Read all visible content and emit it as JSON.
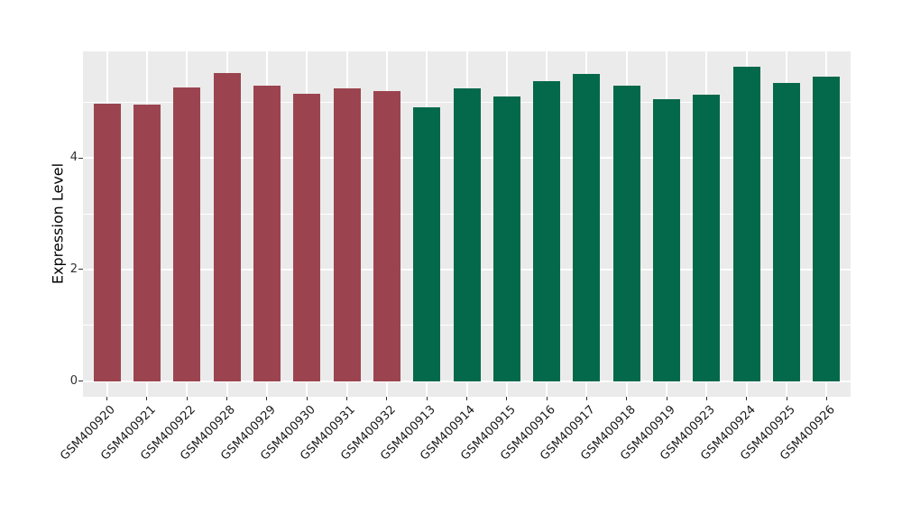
{
  "figure": {
    "background": "#ffffff",
    "panel_background": "#ebebeb",
    "grid_color": "#ffffff",
    "tick_color": "#333333",
    "bar_color_left_group": "#9b4450",
    "bar_color_right_group": "#04694a"
  },
  "chart_data": {
    "type": "bar",
    "title": "",
    "xlabel": "",
    "ylabel": "Expression Level",
    "legend": false,
    "grid": true,
    "categories": [
      "GSM400920",
      "GSM400921",
      "GSM400922",
      "GSM400928",
      "GSM400929",
      "GSM400930",
      "GSM400931",
      "GSM400932",
      "GSM400913",
      "GSM400914",
      "GSM400915",
      "GSM400916",
      "GSM400917",
      "GSM400918",
      "GSM400919",
      "GSM400923",
      "GSM400924",
      "GSM400925",
      "GSM400926"
    ],
    "values": [
      4.98,
      4.96,
      5.26,
      5.52,
      5.29,
      5.15,
      5.25,
      5.2,
      4.9,
      5.25,
      5.1,
      5.37,
      5.5,
      5.3,
      5.05,
      5.14,
      5.63,
      5.34,
      5.45
    ],
    "colors": [
      "#9b4450",
      "#9b4450",
      "#9b4450",
      "#9b4450",
      "#9b4450",
      "#9b4450",
      "#9b4450",
      "#9b4450",
      "#04694a",
      "#04694a",
      "#04694a",
      "#04694a",
      "#04694a",
      "#04694a",
      "#04694a",
      "#04694a",
      "#04694a",
      "#04694a",
      "#04694a"
    ],
    "yticks": [
      0,
      2,
      4
    ],
    "minor_yticks": [
      1,
      3,
      5
    ],
    "ylim": [
      -0.28,
      5.91
    ],
    "x_tick_rotation_deg": 45
  }
}
